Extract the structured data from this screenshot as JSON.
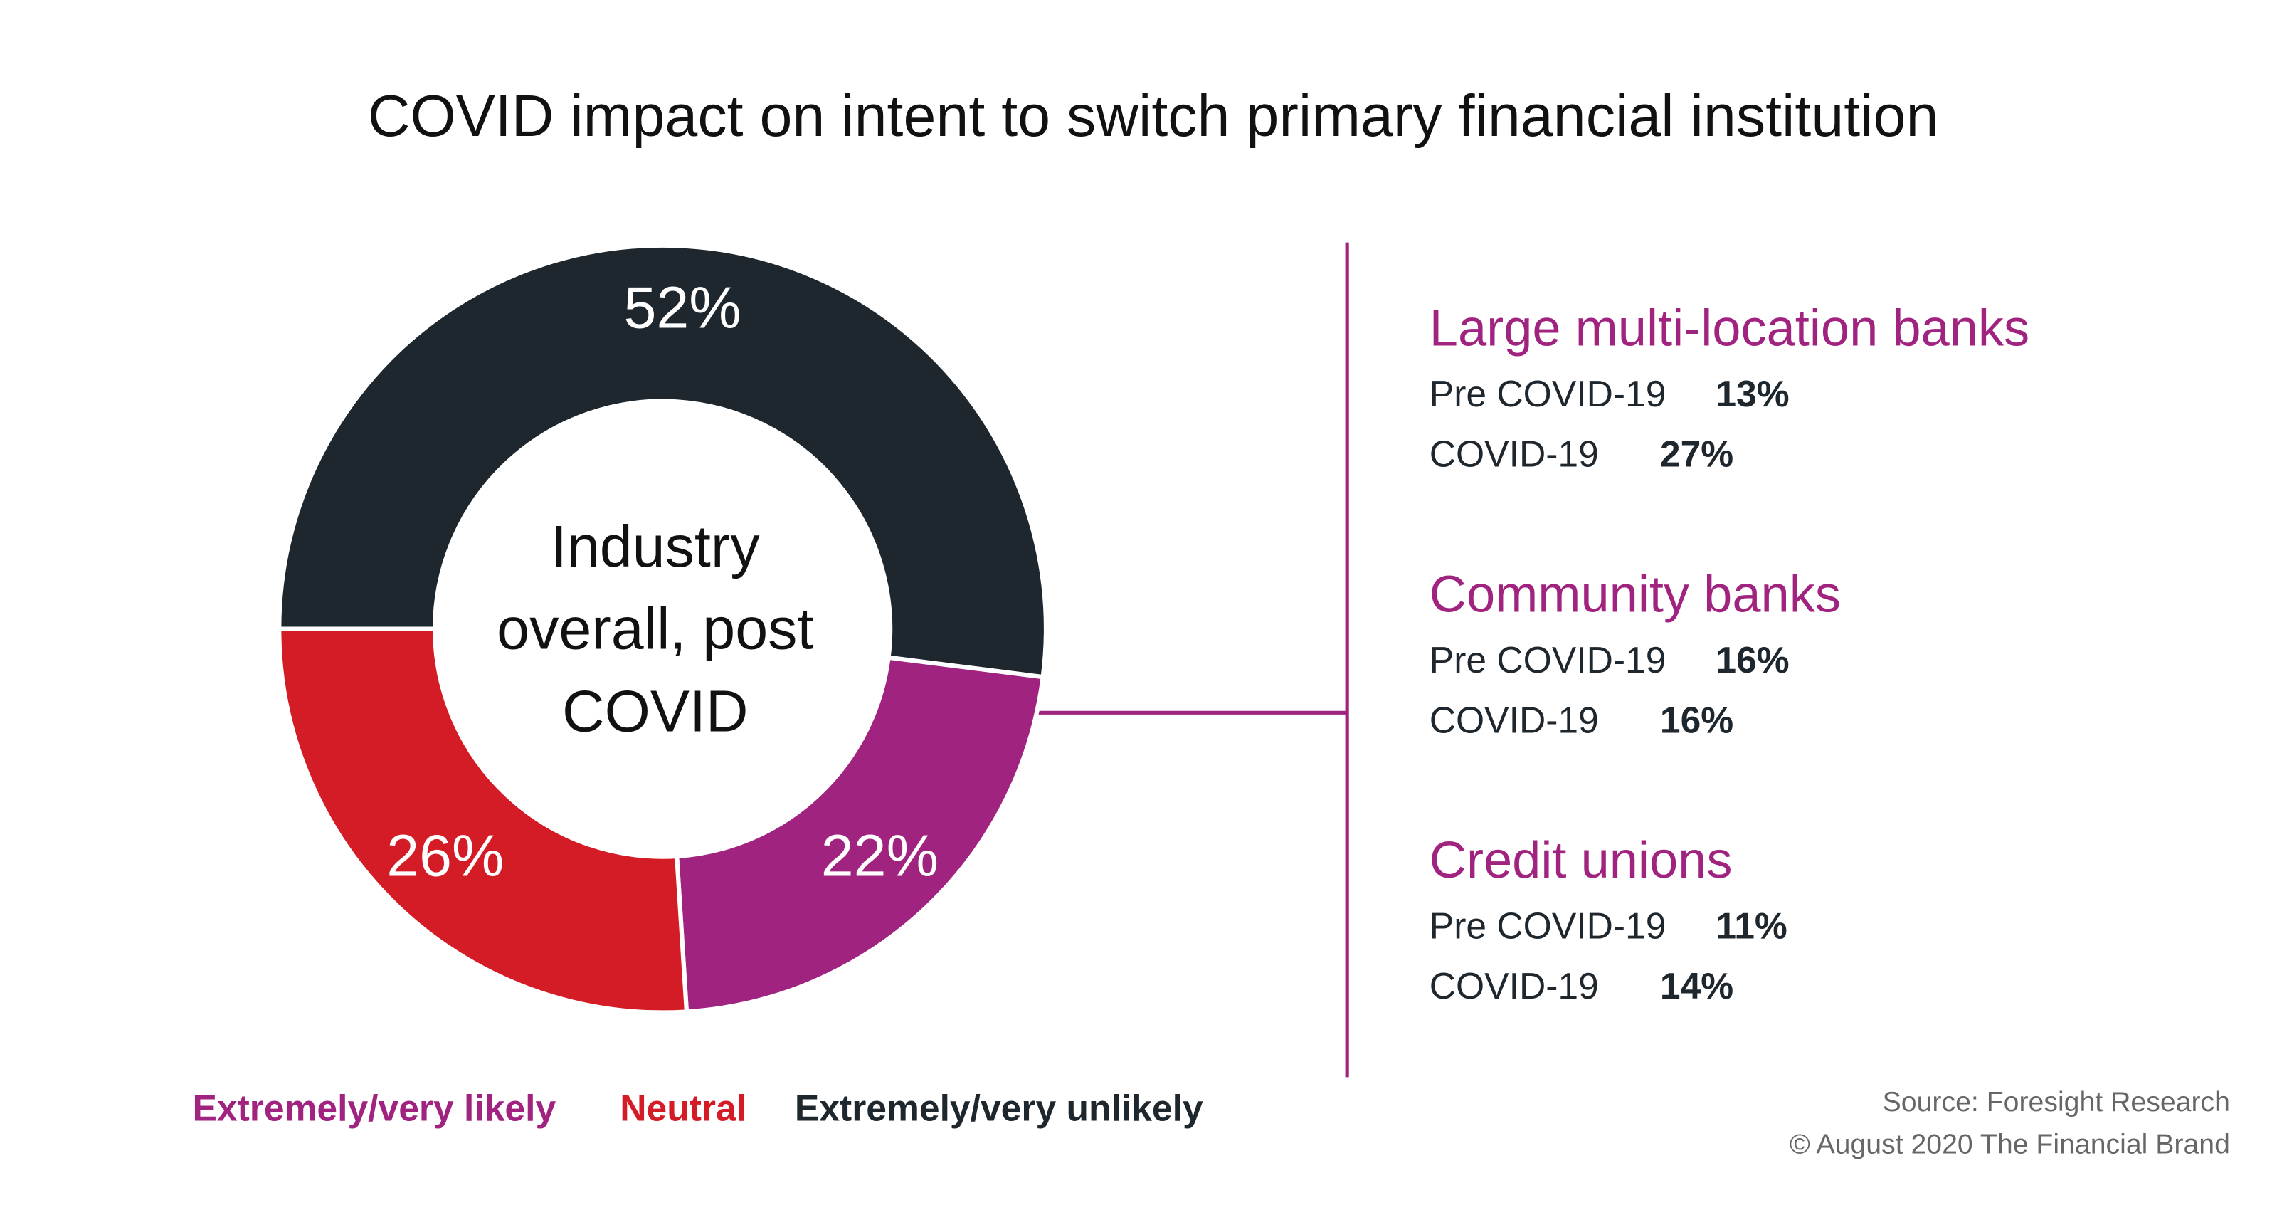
{
  "chart_data": {
    "type": "pie",
    "title": "COVID impact on intent to switch primary financial institution",
    "center_label": [
      "Industry",
      "overall, post",
      "COVID"
    ],
    "categories": [
      "Extremely/very likely",
      "Neutral",
      "Extremely/very unlikely"
    ],
    "values": [
      22,
      26,
      52
    ],
    "value_labels": [
      "22%",
      "26%",
      "52%"
    ],
    "colors": [
      "#a0237f",
      "#d41c27",
      "#1f272e"
    ],
    "donut": true,
    "legend": "bottom"
  },
  "panel": {
    "groups": [
      {
        "title": "Large multi-location banks",
        "rows": [
          {
            "label": "Pre COVID-19",
            "value": "13%"
          },
          {
            "label": "COVID-19",
            "value": "27%"
          }
        ]
      },
      {
        "title": "Community banks",
        "rows": [
          {
            "label": "Pre COVID-19",
            "value": "16%"
          },
          {
            "label": "COVID-19",
            "value": "16%"
          }
        ]
      },
      {
        "title": "Credit unions",
        "rows": [
          {
            "label": "Pre COVID-19",
            "value": "11%"
          },
          {
            "label": "COVID-19",
            "value": "14%"
          }
        ]
      }
    ]
  },
  "footer": {
    "source": "Source: Foresight Research",
    "copyright": "© August 2020 The Financial Brand"
  }
}
